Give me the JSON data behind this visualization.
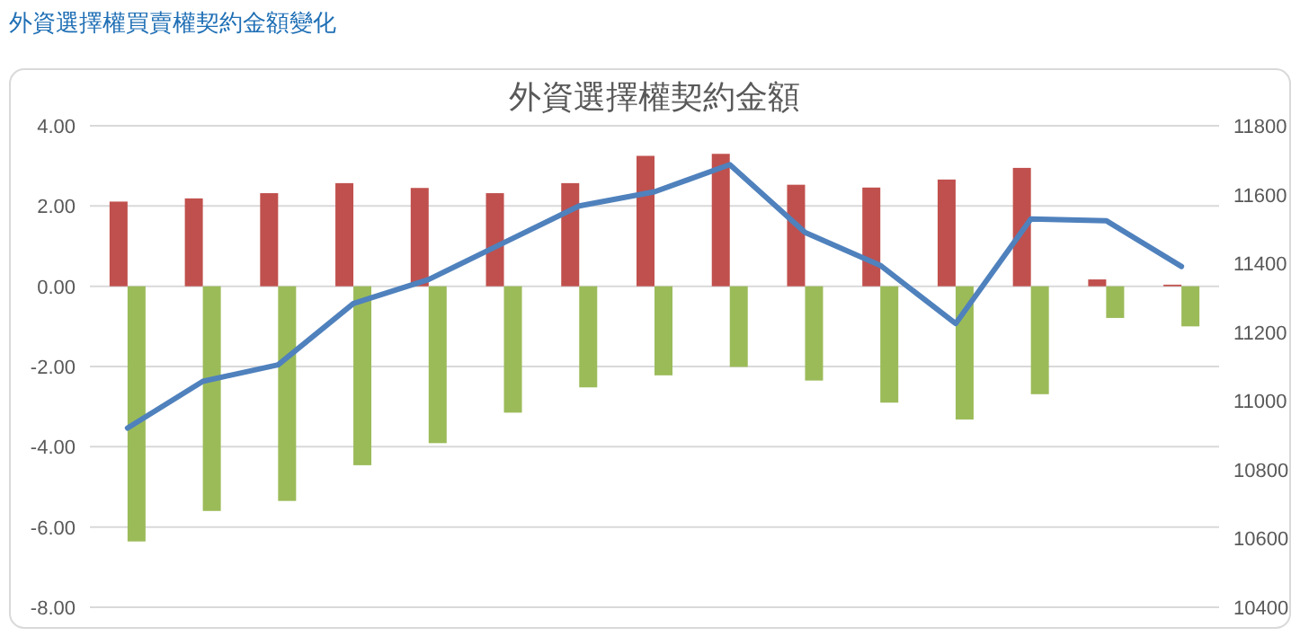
{
  "chart_data": {
    "type": "bar",
    "title": "外資選擇權契約金額",
    "annotations": [
      "外資選擇權買賣權契約金額變化"
    ],
    "categories": [
      null,
      null,
      null,
      null,
      null,
      null,
      null,
      null,
      null,
      null,
      null,
      null,
      null,
      null,
      null
    ],
    "series": [
      {
        "color": "#c0504d",
        "values": [
          2.11,
          2.19,
          2.32,
          2.57,
          2.45,
          2.32,
          2.57,
          3.25,
          3.3,
          2.53,
          2.46,
          2.66,
          2.95,
          0.17,
          0.04
        ]
      },
      {
        "color": "#9bbb59",
        "values": [
          -6.36,
          -5.6,
          -5.35,
          -4.46,
          -3.91,
          -3.15,
          -2.52,
          -2.22,
          -2.01,
          -2.35,
          -2.9,
          -3.32,
          -2.69,
          -0.79,
          -1.0
        ]
      },
      {
        "type": "line",
        "axis": "y2",
        "color": "#4f81bd",
        "values": [
          10921,
          11057,
          11105,
          11283,
          11353,
          11460,
          11567,
          11608,
          11687,
          11490,
          11394,
          11225,
          11529,
          11524,
          11391
        ]
      }
    ],
    "ylim": [
      -8,
      4
    ],
    "yticks": [
      {
        "value": -8,
        "label": "-8.00"
      },
      {
        "value": -6,
        "label": "-6.00"
      },
      {
        "value": -4,
        "label": "-4.00"
      },
      {
        "value": -2,
        "label": "-2.00"
      },
      {
        "value": 0,
        "label": "0.00"
      },
      {
        "value": 2,
        "label": "2.00"
      },
      {
        "value": 4,
        "label": "4.00"
      }
    ],
    "y2lim": [
      10400,
      11800
    ],
    "y2ticks": [
      10400,
      10600,
      10800,
      11000,
      11200,
      11400,
      11600,
      11800
    ],
    "grid": "y"
  }
}
